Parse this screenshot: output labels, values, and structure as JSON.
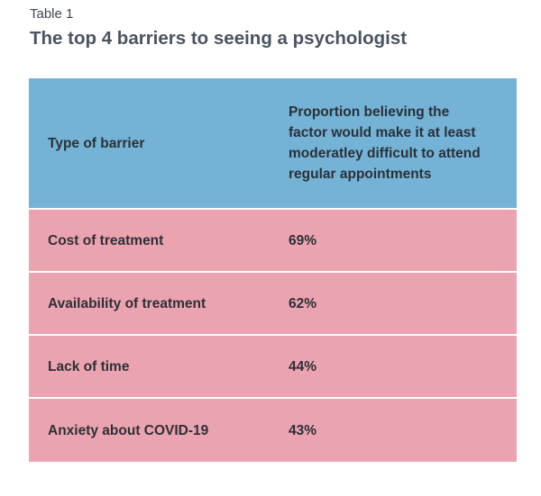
{
  "caption": {
    "label": "Table 1",
    "title": "The top 4 barriers to seeing a psychologist"
  },
  "table": {
    "headers": [
      "Type of barrier",
      "Proportion believing the factor would make it at least moderatley difficult to attend regular appointments"
    ],
    "rows": [
      {
        "barrier": "Cost of treatment",
        "proportion": "69%"
      },
      {
        "barrier": "Availability of treatment",
        "proportion": "62%"
      },
      {
        "barrier": "Lack of time",
        "proportion": "44%"
      },
      {
        "barrier": "Anxiety about COVID-19",
        "proportion": "43%"
      }
    ]
  },
  "colors": {
    "header_background": "#74b3d6",
    "row_background": "#eca3b0",
    "title_text": "#4a5360"
  }
}
